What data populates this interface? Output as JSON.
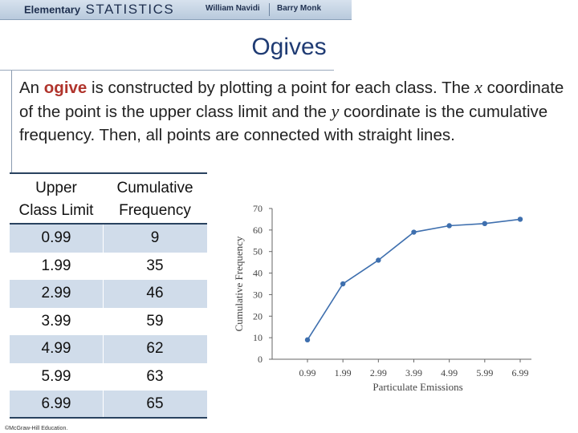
{
  "banner": {
    "book_prefix": "Elementary",
    "book_name": "STATISTICS",
    "author1": "William Navidi",
    "author2": "Barry Monk"
  },
  "slide": {
    "title": "Ogives",
    "paragraph": {
      "t1": "An ",
      "keyword": "ogive",
      "t2": " is constructed by plotting a point for each class. The ",
      "var_x": "x",
      "t3": " coordinate of the point is the upper class limit and the ",
      "var_y": "y",
      "t4": " coordinate is the cumulative frequency.  Then, all points are connected with straight lines."
    }
  },
  "table": {
    "header_col1_line1": "Upper",
    "header_col1_line2": "Class Limit",
    "header_col2_line1": "Cumulative",
    "header_col2_line2": "Frequency",
    "rows": [
      {
        "limit": "0.99",
        "freq": "9"
      },
      {
        "limit": "1.99",
        "freq": "35"
      },
      {
        "limit": "2.99",
        "freq": "46"
      },
      {
        "limit": "3.99",
        "freq": "59"
      },
      {
        "limit": "4.99",
        "freq": "62"
      },
      {
        "limit": "5.99",
        "freq": "63"
      },
      {
        "limit": "6.99",
        "freq": "65"
      }
    ]
  },
  "chart_data": {
    "type": "line",
    "title": "",
    "xlabel": "Particulate Emissions",
    "ylabel": "Cumulative Frequency",
    "x": [
      0.99,
      1.99,
      2.99,
      3.99,
      4.99,
      5.99,
      6.99
    ],
    "x_tick_labels": [
      "0.99",
      "1.99",
      "2.99",
      "3.99",
      "4.99",
      "5.99",
      "6.99"
    ],
    "values": [
      9,
      35,
      46,
      59,
      62,
      63,
      65
    ],
    "ylim": [
      0,
      70
    ],
    "y_ticks": [
      0,
      10,
      20,
      30,
      40,
      50,
      60,
      70
    ],
    "grid": false,
    "line_color": "#3e6fae"
  },
  "footer": {
    "copyright": "©McGraw-Hill Education."
  }
}
